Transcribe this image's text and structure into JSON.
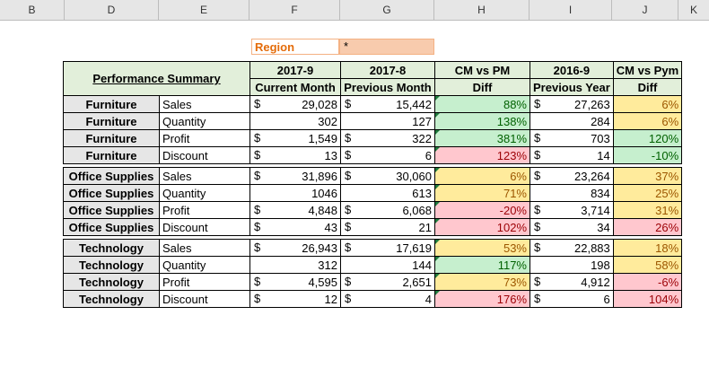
{
  "column_headers": [
    "B",
    "D",
    "E",
    "F",
    "G",
    "H",
    "I",
    "J",
    "K"
  ],
  "region": {
    "label": "Region",
    "value": "*"
  },
  "summary": {
    "title": "Performance Summary",
    "period_headers": [
      "2017-9",
      "2017-8",
      "CM vs PM",
      "2016-9",
      "CM vs Pym"
    ],
    "sub_headers": [
      "Current Month",
      "Previous Month",
      "Diff",
      "Previous Year",
      "Diff"
    ]
  },
  "groups": [
    {
      "category": "Furniture",
      "rows": [
        {
          "metric": "Sales",
          "cur_sym": "$",
          "cur": "29,028",
          "prev_sym": "$",
          "prev": "15,442",
          "diff_pm": "88%",
          "pm_color": "green",
          "py_sym": "$",
          "py": "27,263",
          "diff_py": "6%",
          "py_color": "yellow"
        },
        {
          "metric": "Quantity",
          "cur_sym": "",
          "cur": "302",
          "prev_sym": "",
          "prev": "127",
          "diff_pm": "138%",
          "pm_color": "green",
          "py_sym": "",
          "py": "284",
          "diff_py": "6%",
          "py_color": "yellow"
        },
        {
          "metric": "Profit",
          "cur_sym": "$",
          "cur": "1,549",
          "prev_sym": "$",
          "prev": "322",
          "diff_pm": "381%",
          "pm_color": "green",
          "py_sym": "$",
          "py": "703",
          "diff_py": "120%",
          "py_color": "green"
        },
        {
          "metric": "Discount",
          "cur_sym": "$",
          "cur": "13",
          "prev_sym": "$",
          "prev": "6",
          "diff_pm": "123%",
          "pm_color": "red",
          "py_sym": "$",
          "py": "14",
          "diff_py": "-10%",
          "py_color": "green"
        }
      ]
    },
    {
      "category": "Office Supplies",
      "rows": [
        {
          "metric": "Sales",
          "cur_sym": "$",
          "cur": "31,896",
          "prev_sym": "$",
          "prev": "30,060",
          "diff_pm": "6%",
          "pm_color": "yellow",
          "py_sym": "$",
          "py": "23,264",
          "diff_py": "37%",
          "py_color": "yellow"
        },
        {
          "metric": "Quantity",
          "cur_sym": "",
          "cur": "1046",
          "prev_sym": "",
          "prev": "613",
          "diff_pm": "71%",
          "pm_color": "yellow",
          "py_sym": "",
          "py": "834",
          "diff_py": "25%",
          "py_color": "yellow"
        },
        {
          "metric": "Profit",
          "cur_sym": "$",
          "cur": "4,848",
          "prev_sym": "$",
          "prev": "6,068",
          "diff_pm": "-20%",
          "pm_color": "red",
          "py_sym": "$",
          "py": "3,714",
          "diff_py": "31%",
          "py_color": "yellow"
        },
        {
          "metric": "Discount",
          "cur_sym": "$",
          "cur": "43",
          "prev_sym": "$",
          "prev": "21",
          "diff_pm": "102%",
          "pm_color": "red",
          "py_sym": "$",
          "py": "34",
          "diff_py": "26%",
          "py_color": "red"
        }
      ]
    },
    {
      "category": "Technology",
      "rows": [
        {
          "metric": "Sales",
          "cur_sym": "$",
          "cur": "26,943",
          "prev_sym": "$",
          "prev": "17,619",
          "diff_pm": "53%",
          "pm_color": "yellow",
          "py_sym": "$",
          "py": "22,883",
          "diff_py": "18%",
          "py_color": "yellow"
        },
        {
          "metric": "Quantity",
          "cur_sym": "",
          "cur": "312",
          "prev_sym": "",
          "prev": "144",
          "diff_pm": "117%",
          "pm_color": "green",
          "py_sym": "",
          "py": "198",
          "diff_py": "58%",
          "py_color": "yellow"
        },
        {
          "metric": "Profit",
          "cur_sym": "$",
          "cur": "4,595",
          "prev_sym": "$",
          "prev": "2,651",
          "diff_pm": "73%",
          "pm_color": "yellow",
          "py_sym": "$",
          "py": "4,912",
          "diff_py": "-6%",
          "py_color": "red"
        },
        {
          "metric": "Discount",
          "cur_sym": "$",
          "cur": "12",
          "prev_sym": "$",
          "prev": "4",
          "diff_pm": "176%",
          "pm_color": "red",
          "py_sym": "$",
          "py": "6",
          "diff_py": "104%",
          "py_color": "red"
        }
      ]
    }
  ],
  "colors": {
    "green_fill": "#c6efce",
    "green_text": "#006100",
    "yellow_fill": "#ffeb9c",
    "yellow_text": "#9c5700",
    "red_fill": "#ffc7ce",
    "red_text": "#9c0006",
    "header_fill": "#e2efda",
    "category_fill": "#e6e6e6",
    "region_fill": "#f8cbad"
  }
}
